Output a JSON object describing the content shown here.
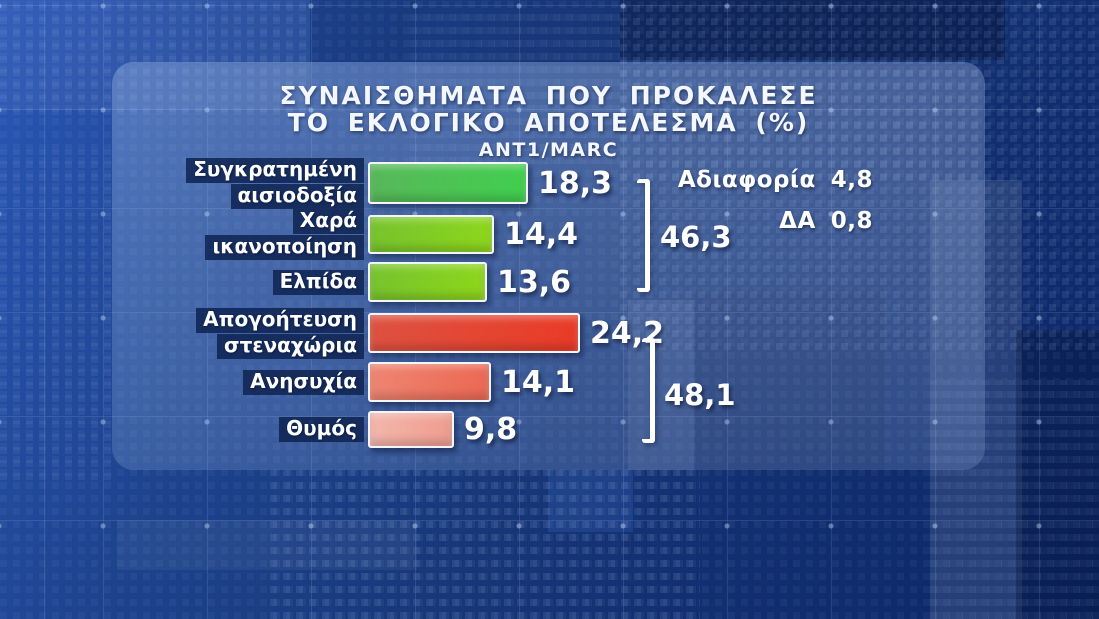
{
  "chart_data": {
    "type": "bar",
    "orientation": "horizontal",
    "title": "ΣΥΝΑΙΣΘΗΜΑΤΑ ΠΟΥ ΠΡΟΚΑΛΕΣΕ ΤΟ ΕΚΛΟΓΙΚΟ ΑΠΟΤΕΛΕΣΜΑ (%)",
    "source": "ANT1/MARC",
    "unit": "%",
    "categories": [
      "Συγκρατημένη αισιοδοξία",
      "Χαρά ικανοποίηση",
      "Ελπίδα",
      "Απογοήτευση στεναχώρια",
      "Ανησυχία",
      "Θυμός"
    ],
    "values": [
      18.3,
      14.4,
      13.6,
      24.2,
      14.1,
      9.8
    ],
    "series_colors": [
      "#44cb4e",
      "#85cf22",
      "#85cf22",
      "#e8402d",
      "#ed7560",
      "#f1a99d"
    ],
    "groups": [
      {
        "name": "positive-emotions",
        "total": 46.3,
        "member_indices": [
          0,
          1,
          2
        ]
      },
      {
        "name": "negative-emotions",
        "total": 48.1,
        "member_indices": [
          3,
          4,
          5
        ]
      }
    ],
    "other_answers": [
      {
        "label": "Αδιαφορία",
        "value": 4.8
      },
      {
        "label": "ΔΑ",
        "value": 0.8
      }
    ],
    "legend": "none",
    "grid": "off",
    "value_labels": "outside-end"
  },
  "header": {
    "title_line1": "ΣΥΝΑΙΣΘΗΜΑΤΑ ΠΟΥ ΠΡΟΚΑΛΕΣΕ",
    "title_line2": "ΤΟ ΕΚΛΟΓΙΚΟ ΑΠΟΤΕΛΕΣΜΑ (%)",
    "source": "ANT1/MARC"
  },
  "rows": [
    {
      "label_lines": [
        "Συγκρατημένη",
        "αισιοδοξία"
      ],
      "value": 18.3,
      "value_text": "18,3",
      "color_from": "#58b75a",
      "color_to": "#41cf4e"
    },
    {
      "label_lines": [
        "Χαρά",
        "ικανοποίηση"
      ],
      "value": 14.4,
      "value_text": "14,4",
      "color_from": "#76c32e",
      "color_to": "#8ed61c"
    },
    {
      "label_lines": [
        "Ελπίδα"
      ],
      "value": 13.6,
      "value_text": "13,6",
      "color_from": "#76c32e",
      "color_to": "#8ed61c"
    },
    {
      "label_lines": [
        "Απογοήτευση",
        "στεναχώρια"
      ],
      "value": 24.2,
      "value_text": "24,2",
      "color_from": "#dd5240",
      "color_to": "#e93b27"
    },
    {
      "label_lines": [
        "Ανησυχία"
      ],
      "value": 14.1,
      "value_text": "14,1",
      "color_from": "#ee8572",
      "color_to": "#eb6853"
    },
    {
      "label_lines": [
        "Θυμός"
      ],
      "value": 9.8,
      "value_text": "9,8",
      "color_from": "#f4b7ad",
      "color_to": "#ee9c8d"
    }
  ],
  "brackets": [
    {
      "value_text": "46,3"
    },
    {
      "value_text": "48,1"
    }
  ],
  "side_stats": [
    {
      "label": "Αδιαφορία",
      "value_text": "4,8"
    },
    {
      "label": "ΔΑ",
      "value_text": "0,8"
    }
  ],
  "colors": {
    "background_blue": "#173677",
    "panel_tint": "#aecdf0",
    "label_box": "#12284f",
    "text": "#ffffff",
    "bar_border": "#f2f6fb"
  }
}
